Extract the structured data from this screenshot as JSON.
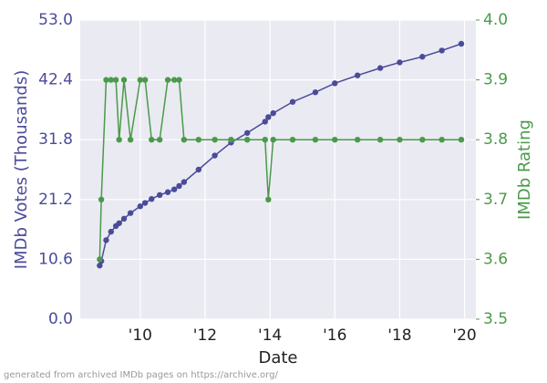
{
  "chart_data": {
    "type": "line",
    "xlabel": "Date",
    "ylabel": "IMDb Votes (Thousands)",
    "y2label": "IMDb Rating",
    "footnote": "generated from archived IMDb pages on https://archive.org/",
    "x": [
      2008.75,
      2008.8,
      2008.95,
      2009.1,
      2009.25,
      2009.35,
      2009.5,
      2009.7,
      2010.0,
      2010.15,
      2010.35,
      2010.6,
      2010.85,
      2011.05,
      2011.2,
      2011.35,
      2011.8,
      2012.3,
      2012.8,
      2013.3,
      2013.85,
      2013.95,
      2014.1,
      2014.7,
      2015.4,
      2016.0,
      2016.7,
      2017.4,
      2018.0,
      2018.7,
      2019.3,
      2019.9
    ],
    "series": [
      {
        "name": "IMDb Votes (Thousands)",
        "color": "#4b4b9b",
        "values": [
          9.5,
          10.3,
          14.0,
          15.5,
          16.5,
          17.0,
          17.8,
          18.8,
          20.0,
          20.6,
          21.3,
          22.0,
          22.5,
          23.0,
          23.6,
          24.3,
          26.5,
          29.0,
          31.3,
          33.0,
          35.0,
          35.8,
          36.5,
          38.5,
          40.2,
          41.8,
          43.2,
          44.5,
          45.5,
          46.5,
          47.6,
          48.8
        ]
      },
      {
        "name": "IMDb Rating",
        "color": "#4a9a4a",
        "axis": "y2",
        "values": [
          3.6,
          3.7,
          3.9,
          3.9,
          3.9,
          3.8,
          3.9,
          3.8,
          3.9,
          3.9,
          3.8,
          3.8,
          3.9,
          3.9,
          3.9,
          3.8,
          3.8,
          3.8,
          3.8,
          3.8,
          3.8,
          3.7,
          3.8,
          3.8,
          3.8,
          3.8,
          3.8,
          3.8,
          3.8,
          3.8,
          3.8,
          3.8
        ]
      }
    ],
    "xlim": [
      2008.15,
      2020.35
    ],
    "xticks": [
      {
        "value": 2010,
        "label": "'10"
      },
      {
        "value": 2012,
        "label": "'12"
      },
      {
        "value": 2014,
        "label": "'14"
      },
      {
        "value": 2016,
        "label": "'16"
      },
      {
        "value": 2018,
        "label": "'18"
      },
      {
        "value": 2020,
        "label": "'20"
      }
    ],
    "ylim": [
      0,
      53
    ],
    "yticks": [
      {
        "value": 0,
        "label": "0.0"
      },
      10.6,
      21.2,
      31.8,
      42.4,
      {
        "value": 53,
        "label": "53.0"
      }
    ],
    "y2lim": [
      3.5,
      4
    ],
    "y2ticks": [
      3.5,
      3.6,
      3.7,
      3.8,
      3.9,
      {
        "value": 4,
        "label": "4.0"
      }
    ],
    "grid": true
  }
}
